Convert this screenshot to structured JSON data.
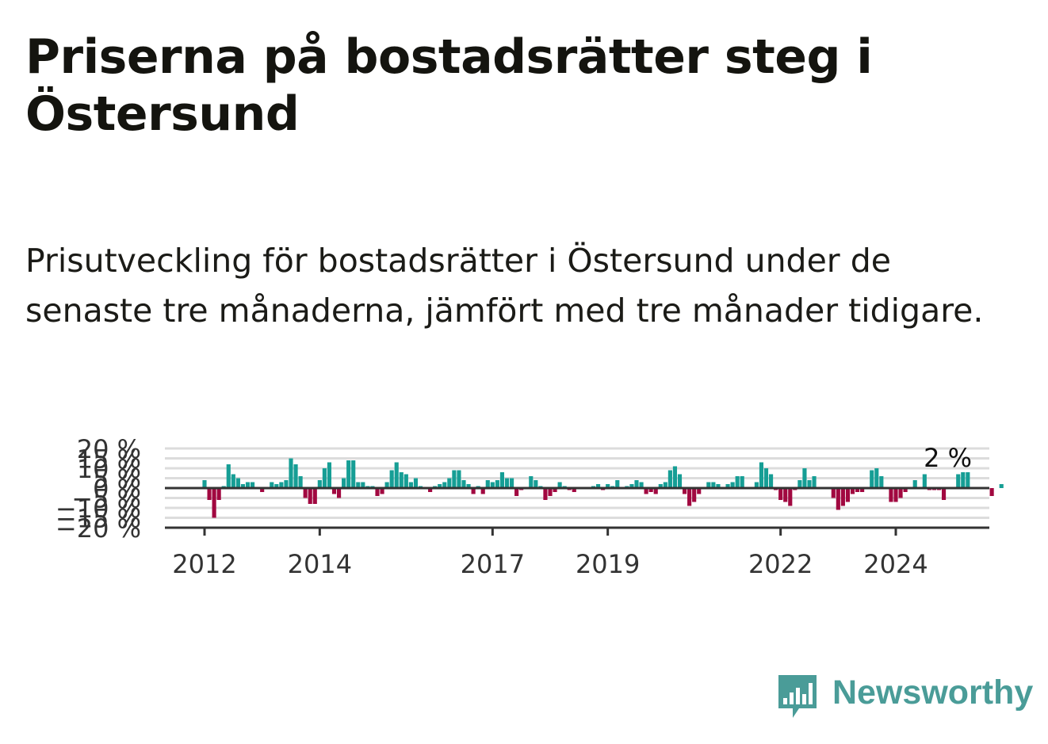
{
  "title": "Priserna på bostadsrätter steg i Östersund",
  "subtitle": "Prisutveckling för bostadsrätter i Östersund under de senaste tre månaderna, jämfört med tre månader tidigare.",
  "brand": "Newsworthy",
  "colors": {
    "positive": "#169e95",
    "negative": "#a10840",
    "grid": "#dcdcdc",
    "axis": "#333333",
    "brand": "#4a9c98"
  },
  "chart_data": {
    "type": "bar",
    "ylim": [
      -20,
      20
    ],
    "yticks": [
      20,
      15,
      10,
      5,
      0,
      -5,
      -10,
      -15,
      -20
    ],
    "ytick_labels": [
      "20 %",
      "15 %",
      "10 %",
      "5 %",
      "0 %",
      "−5 %",
      "−10 %",
      "−15 %",
      "−20 %"
    ],
    "xticks": [
      {
        "x": 2012,
        "label": "2012"
      },
      {
        "x": 2014,
        "label": "2014"
      },
      {
        "x": 2017,
        "label": "2017"
      },
      {
        "x": 2019,
        "label": "2019"
      },
      {
        "x": 2022,
        "label": "2022"
      },
      {
        "x": 2024,
        "label": "2024"
      }
    ],
    "x_start": 2012,
    "x_step": 0.0833333,
    "values": [
      4,
      -6,
      -15,
      -6,
      1,
      12,
      7,
      5,
      2,
      3,
      3,
      0,
      -2,
      0,
      3,
      2,
      3,
      4,
      15,
      12,
      6,
      -5,
      -8,
      -8,
      4,
      10,
      13,
      -3,
      -5,
      5,
      14,
      14,
      3,
      3,
      1,
      1,
      -4,
      -3,
      3,
      9,
      13,
      8,
      7,
      3,
      5,
      1,
      0,
      -2,
      1,
      2,
      3,
      5,
      9,
      9,
      4,
      2,
      -3,
      1,
      -3,
      4,
      3,
      4,
      8,
      5,
      5,
      -4,
      -1,
      0,
      6,
      4,
      1,
      -6,
      -4,
      -2,
      3,
      1,
      -1,
      -2,
      0,
      0,
      0,
      1,
      2,
      -1,
      2,
      1,
      4,
      0,
      1,
      2,
      4,
      3,
      -3,
      -2,
      -3,
      2,
      3,
      9,
      11,
      7,
      -3,
      -9,
      -7,
      -3,
      0,
      3,
      3,
      2,
      0,
      2,
      3,
      6,
      6,
      0,
      0,
      3,
      13,
      10,
      7,
      -1,
      -6,
      -7,
      -9,
      -1,
      4,
      10,
      4,
      6,
      0,
      0,
      0,
      -5,
      -11,
      -9,
      -7,
      -3,
      -2,
      -2,
      0,
      9,
      10,
      6,
      0,
      -7,
      -7,
      -5,
      -2,
      0,
      4,
      0,
      7,
      -1,
      -1,
      -1,
      -6,
      0,
      0,
      7,
      8,
      8,
      0,
      0,
      0,
      0,
      -4,
      0,
      2
    ],
    "annotation": "2 %"
  }
}
